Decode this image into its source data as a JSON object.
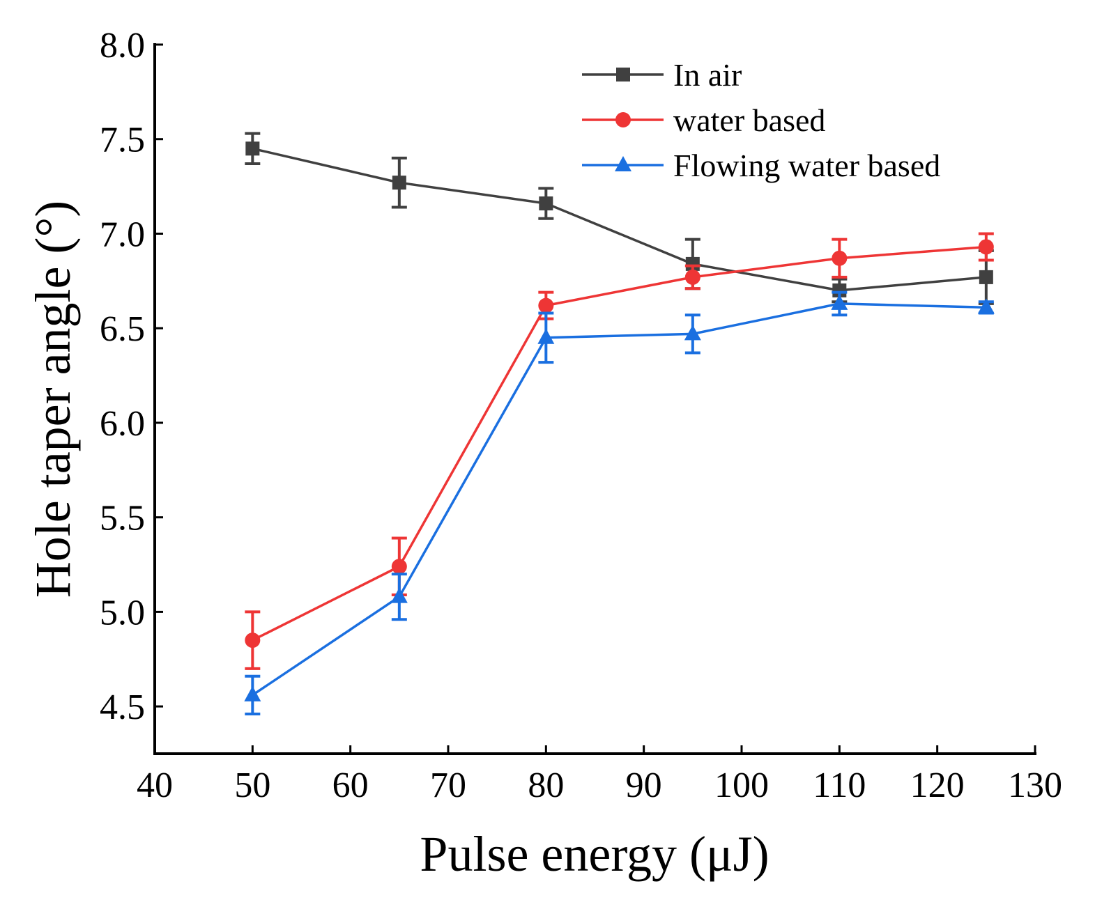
{
  "chart_data": {
    "type": "line",
    "title": "",
    "xlabel": "Pulse energy (μJ)",
    "ylabel": "Hole taper angle (°)",
    "xlim": [
      40,
      130
    ],
    "ylim": [
      4.25,
      8.0
    ],
    "xticks": [
      "40",
      "50",
      "60",
      "70",
      "80",
      "90",
      "100",
      "110",
      "120",
      "130"
    ],
    "yticks": [
      "4.5",
      "5.0",
      "5.5",
      "6.0",
      "6.5",
      "7.0",
      "7.5",
      "8.0"
    ],
    "grid": false,
    "legend_position": "top-right",
    "x": [
      50,
      65,
      80,
      95,
      110,
      125
    ],
    "series": [
      {
        "name": "In air",
        "color": "#404040",
        "marker": "square",
        "values": [
          7.45,
          7.27,
          7.16,
          6.84,
          6.7,
          6.77
        ],
        "errors": [
          0.08,
          0.13,
          0.08,
          0.13,
          0.06,
          0.14
        ]
      },
      {
        "name": "water based",
        "color": "#ee3535",
        "marker": "circle",
        "values": [
          4.85,
          5.24,
          6.62,
          6.77,
          6.87,
          6.93
        ],
        "errors": [
          0.15,
          0.15,
          0.07,
          0.06,
          0.1,
          0.07
        ]
      },
      {
        "name": "Flowing water based",
        "color": "#1a6fe0",
        "marker": "triangle",
        "values": [
          4.56,
          5.08,
          6.45,
          6.47,
          6.63,
          6.61
        ],
        "errors": [
          0.1,
          0.12,
          0.13,
          0.1,
          0.06,
          0.03
        ]
      }
    ]
  }
}
